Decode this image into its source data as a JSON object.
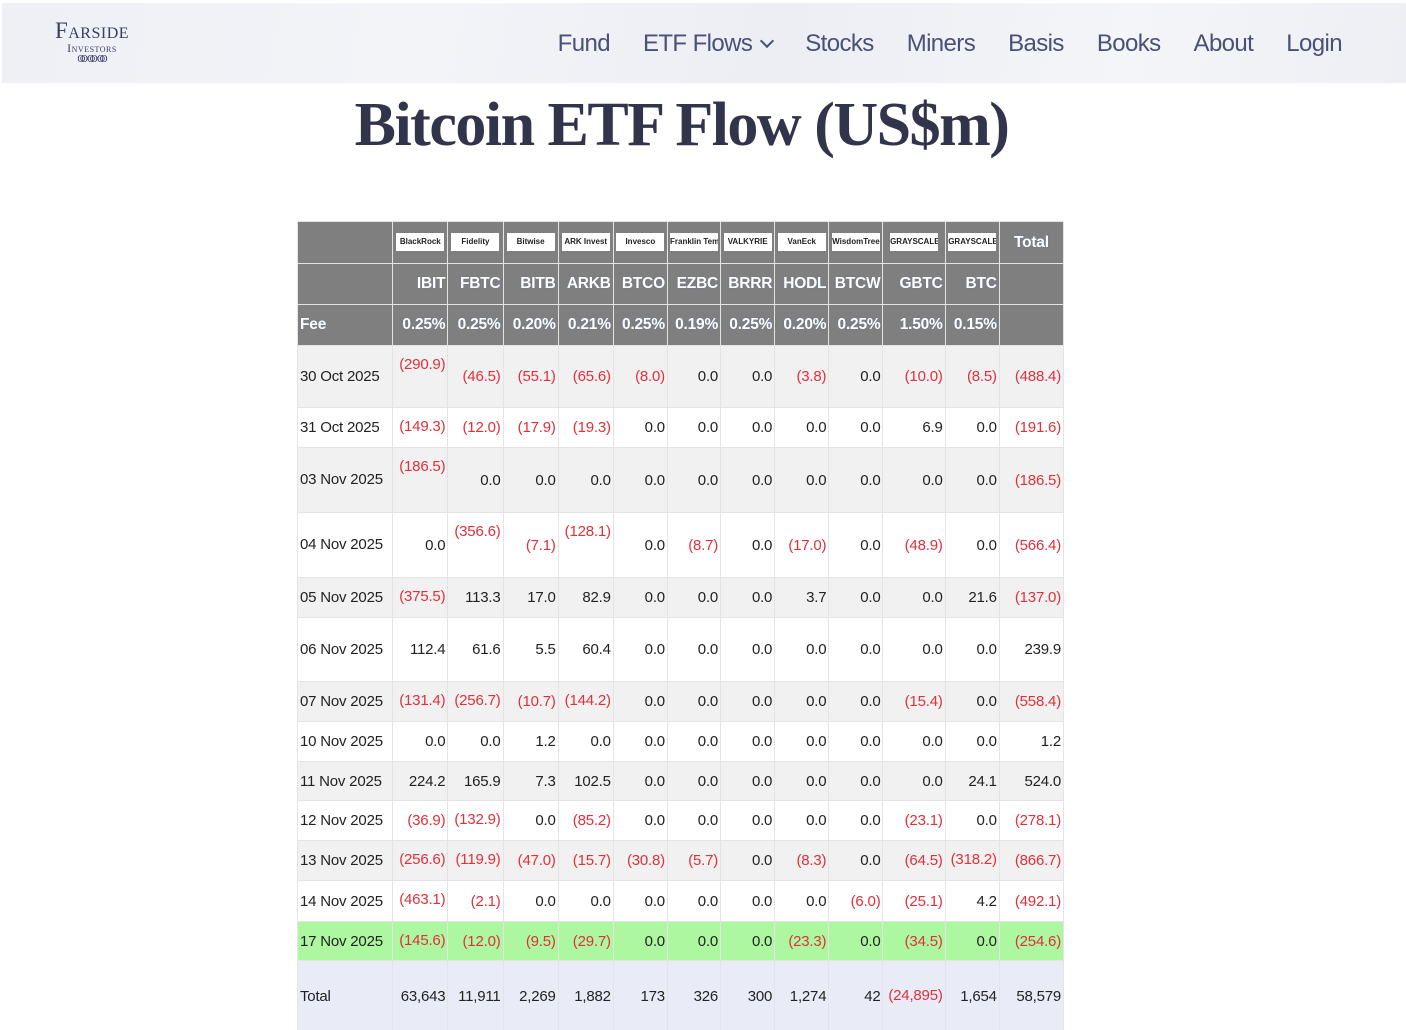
{
  "header": {
    "logo": {
      "main": "Farside",
      "sub": "Investors",
      "mark": "(X)(X)"
    },
    "nav": [
      {
        "label": "Fund"
      },
      {
        "label": "ETF Flows",
        "has_dropdown": true,
        "icon": "chevron-down-icon"
      },
      {
        "label": "Stocks"
      },
      {
        "label": "Miners"
      },
      {
        "label": "Basis"
      },
      {
        "label": "Books"
      },
      {
        "label": "About"
      },
      {
        "label": "Login"
      }
    ]
  },
  "page": {
    "title": "Bitcoin ETF Flow (US$m)"
  },
  "table": {
    "issuers": [
      "BlackRock",
      "Fidelity",
      "Bitwise",
      "ARK Invest",
      "Invesco",
      "Franklin Templeton",
      "VALKYRIE",
      "VanEck",
      "WisdomTree",
      "GRAYSCALE",
      "GRAYSCALE"
    ],
    "total_header": "Total",
    "tickers": [
      "IBIT",
      "FBTC",
      "BITB",
      "ARKB",
      "BTCO",
      "EZBC",
      "BRRR",
      "HODL",
      "BTCW",
      "GBTC",
      "BTC"
    ],
    "fee_label": "Fee",
    "fees": [
      "0.25%",
      "0.25%",
      "0.20%",
      "0.21%",
      "0.25%",
      "0.19%",
      "0.25%",
      "0.20%",
      "0.25%",
      "1.50%",
      "0.15%"
    ],
    "rows": [
      {
        "date": "30 Oct 2025",
        "values": [
          "(290.9)",
          "(46.5)",
          "(55.1)",
          "(65.6)",
          "(8.0)",
          "0.0",
          "0.0",
          "(3.8)",
          "0.0",
          "(10.0)",
          "(8.5)"
        ],
        "total": "(488.4)"
      },
      {
        "date": "31 Oct 2025",
        "values": [
          "(149.3)",
          "(12.0)",
          "(17.9)",
          "(19.3)",
          "0.0",
          "0.0",
          "0.0",
          "0.0",
          "0.0",
          "6.9",
          "0.0"
        ],
        "total": "(191.6)"
      },
      {
        "date": "03 Nov 2025",
        "values": [
          "(186.5)",
          "0.0",
          "0.0",
          "0.0",
          "0.0",
          "0.0",
          "0.0",
          "0.0",
          "0.0",
          "0.0",
          "0.0"
        ],
        "total": "(186.5)"
      },
      {
        "date": "04 Nov 2025",
        "values": [
          "0.0",
          "(356.6)",
          "(7.1)",
          "(128.1)",
          "0.0",
          "(8.7)",
          "0.0",
          "(17.0)",
          "0.0",
          "(48.9)",
          "0.0"
        ],
        "total": "(566.4)"
      },
      {
        "date": "05 Nov 2025",
        "values": [
          "(375.5)",
          "113.3",
          "17.0",
          "82.9",
          "0.0",
          "0.0",
          "0.0",
          "3.7",
          "0.0",
          "0.0",
          "21.6"
        ],
        "total": "(137.0)"
      },
      {
        "date": "06 Nov 2025",
        "values": [
          "112.4",
          "61.6",
          "5.5",
          "60.4",
          "0.0",
          "0.0",
          "0.0",
          "0.0",
          "0.0",
          "0.0",
          "0.0"
        ],
        "total": "239.9"
      },
      {
        "date": "07 Nov 2025",
        "values": [
          "(131.4)",
          "(256.7)",
          "(10.7)",
          "(144.2)",
          "0.0",
          "0.0",
          "0.0",
          "0.0",
          "0.0",
          "(15.4)",
          "0.0"
        ],
        "total": "(558.4)"
      },
      {
        "date": "10 Nov 2025",
        "values": [
          "0.0",
          "0.0",
          "1.2",
          "0.0",
          "0.0",
          "0.0",
          "0.0",
          "0.0",
          "0.0",
          "0.0",
          "0.0"
        ],
        "total": "1.2"
      },
      {
        "date": "11 Nov 2025",
        "values": [
          "224.2",
          "165.9",
          "7.3",
          "102.5",
          "0.0",
          "0.0",
          "0.0",
          "0.0",
          "0.0",
          "0.0",
          "24.1"
        ],
        "total": "524.0"
      },
      {
        "date": "12 Nov 2025",
        "values": [
          "(36.9)",
          "(132.9)",
          "0.0",
          "(85.2)",
          "0.0",
          "0.0",
          "0.0",
          "0.0",
          "0.0",
          "(23.1)",
          "0.0"
        ],
        "total": "(278.1)"
      },
      {
        "date": "13 Nov 2025",
        "values": [
          "(256.6)",
          "(119.9)",
          "(47.0)",
          "(15.7)",
          "(30.8)",
          "(5.7)",
          "0.0",
          "(8.3)",
          "0.0",
          "(64.5)",
          "(318.2)"
        ],
        "total": "(866.7)"
      },
      {
        "date": "14 Nov 2025",
        "values": [
          "(463.1)",
          "(2.1)",
          "0.0",
          "0.0",
          "0.0",
          "0.0",
          "0.0",
          "0.0",
          "(6.0)",
          "(25.1)",
          "4.2"
        ],
        "total": "(492.1)"
      },
      {
        "date": "17 Nov 2025",
        "values": [
          "(145.6)",
          "(12.0)",
          "(9.5)",
          "(29.7)",
          "0.0",
          "0.0",
          "0.0",
          "(23.3)",
          "0.0",
          "(34.5)",
          "0.0"
        ],
        "total": "(254.6)",
        "highlight": true
      }
    ],
    "total_row": {
      "label": "Total",
      "values": [
        "63,643",
        "11,911",
        "2,269",
        "1,882",
        "173",
        "326",
        "300",
        "1,274",
        "42",
        "(24,895)",
        "1,654"
      ],
      "total": "58,579"
    }
  },
  "colors": {
    "header_bg": "#7f7f7f",
    "negative": "#e0303a",
    "highlight_row": "#adf7a0",
    "total_row": "#e9ecf6",
    "nav_text": "#4a5078",
    "title_text": "#31344a"
  }
}
